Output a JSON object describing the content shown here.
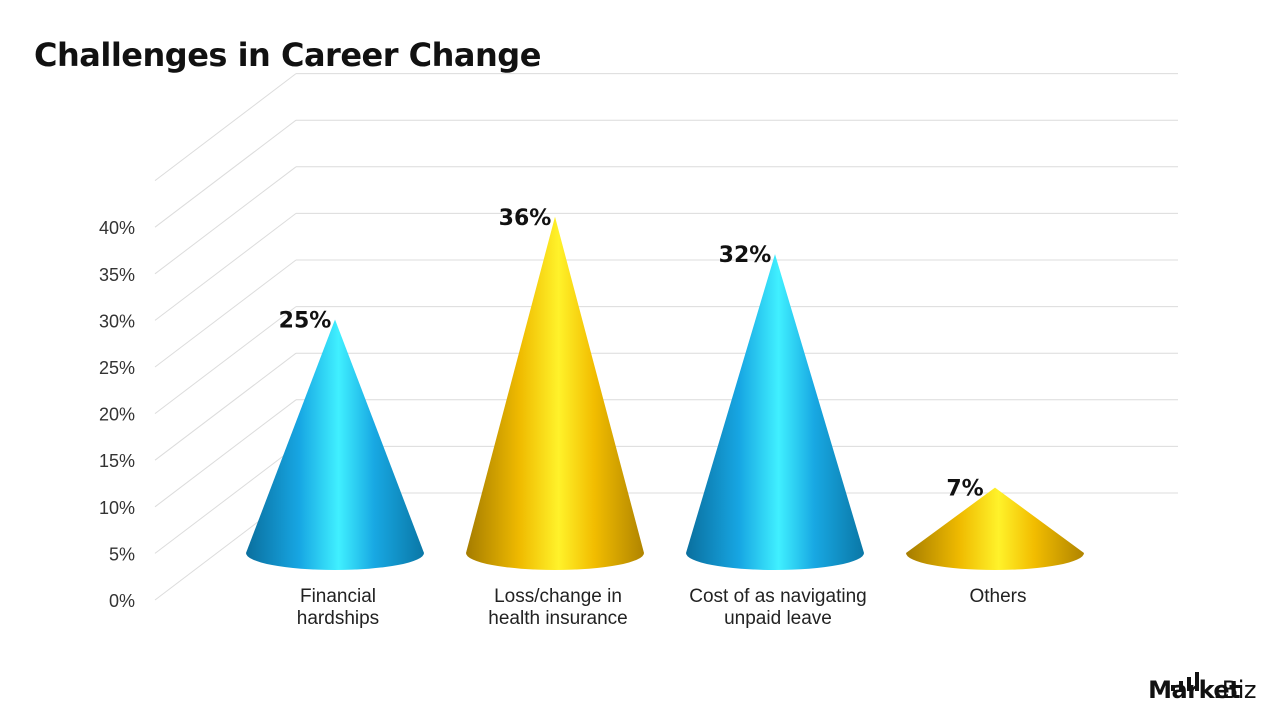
{
  "title": "Challenges in Career Change",
  "brand": {
    "part1": "Market",
    "dot": ".",
    "part2": "Biz"
  },
  "colors": {
    "blue": "#1fb6ef",
    "gold": "#f5c400",
    "grid": "#dcdcdc"
  },
  "chart_data": {
    "type": "bar",
    "shape": "cone-3d",
    "title": "Challenges in Career Change",
    "categories": [
      [
        "Financial",
        "hardships"
      ],
      [
        "Loss/change in",
        "health insurance"
      ],
      [
        "Cost of as navigating",
        "unpaid leave"
      ],
      [
        "Others"
      ]
    ],
    "values": [
      25,
      36,
      32,
      7
    ],
    "value_labels": [
      "25%",
      "36%",
      "32%",
      "7%"
    ],
    "bar_colors": [
      "blue",
      "gold",
      "blue",
      "gold"
    ],
    "yticks": [
      "0%",
      "5%",
      "10%",
      "15%",
      "20%",
      "25%",
      "30%",
      "35%",
      "40%"
    ],
    "ylim": [
      0,
      40
    ],
    "grid": true,
    "legend": "none"
  }
}
